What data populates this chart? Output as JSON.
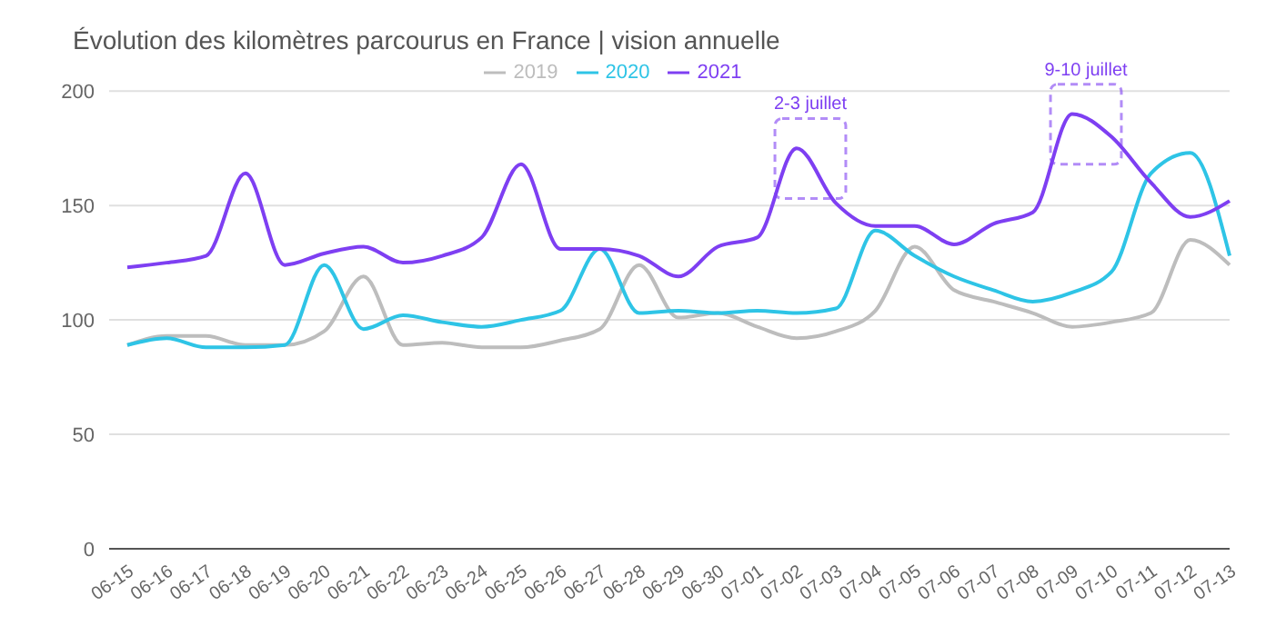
{
  "chart_data": {
    "type": "line",
    "title": "Évolution des kilomètres parcourus en France | vision annuelle",
    "categories": [
      "06-15",
      "06-16",
      "06-17",
      "06-18",
      "06-19",
      "06-20",
      "06-21",
      "06-22",
      "06-23",
      "06-24",
      "06-25",
      "06-26",
      "06-27",
      "06-28",
      "06-29",
      "06-30",
      "07-01",
      "07-02",
      "07-03",
      "07-04",
      "07-05",
      "07-06",
      "07-07",
      "07-08",
      "07-09",
      "07-10",
      "07-11",
      "07-12",
      "07-13"
    ],
    "series": [
      {
        "name": "2019",
        "color": "#bdbdbd",
        "values": [
          89,
          93,
          93,
          89,
          89,
          95,
          119,
          89,
          90,
          88,
          88,
          91,
          96,
          124,
          101,
          103,
          97,
          92,
          95,
          104,
          132,
          113,
          108,
          103,
          97,
          99,
          103,
          135,
          124
        ]
      },
      {
        "name": "2020",
        "color": "#2ec4e6",
        "values": [
          89,
          92,
          88,
          88,
          89,
          124,
          96,
          102,
          99,
          97,
          100,
          104,
          131,
          103,
          104,
          103,
          104,
          103,
          105,
          139,
          128,
          119,
          113,
          108,
          112,
          121,
          164,
          173,
          128
        ]
      },
      {
        "name": "2021",
        "color": "#7e3ff2",
        "values": [
          123,
          125,
          128,
          164,
          124,
          129,
          132,
          125,
          128,
          136,
          168,
          131,
          131,
          128,
          119,
          132,
          136,
          175,
          151,
          141,
          141,
          133,
          142,
          147,
          190,
          180,
          160,
          145,
          152
        ]
      }
    ],
    "ylim": [
      0,
      200
    ],
    "yticks": [
      0,
      50,
      100,
      150,
      200
    ],
    "grid": "y",
    "legend": "top",
    "marker": "none",
    "line_style": "solid",
    "annotations": [
      {
        "text": "2-3 juillet",
        "x": "07-02",
        "y": 175
      },
      {
        "text": "9-10 juillet",
        "x": "07-09",
        "y": 190
      }
    ]
  }
}
